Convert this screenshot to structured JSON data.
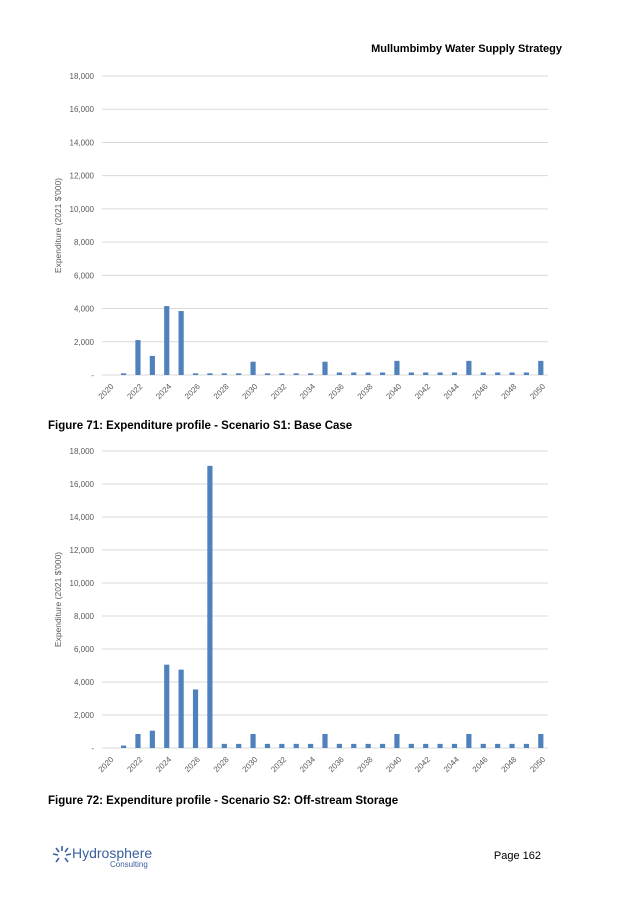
{
  "header": {
    "title": "Mullumbimby Water Supply Strategy"
  },
  "captions": {
    "fig71": "Figure 71: Expenditure profile - Scenario S1: Base Case",
    "fig72": "Figure 72: Expenditure profile - Scenario S2: Off-stream Storage"
  },
  "footer": {
    "logo_text": "Hydrosphere",
    "logo_subtext": "Consulting",
    "page": "Page 162"
  },
  "colors": {
    "bar": "#4f81bd",
    "grid": "#d9d9d9",
    "tick_text": "#595959",
    "logo": "#3a5f9e"
  },
  "chart_data": [
    {
      "type": "bar",
      "ylabel": "Expenditure (2021 $'000)",
      "ylim": [
        0,
        18000
      ],
      "yticks": [
        0,
        2000,
        4000,
        6000,
        8000,
        10000,
        12000,
        14000,
        16000,
        18000
      ],
      "ytick_labels": [
        "-",
        "2,000",
        "4,000",
        "6,000",
        "8,000",
        "10,000",
        "12,000",
        "14,000",
        "16,000",
        "18,000"
      ],
      "grid": true,
      "x": [
        2020,
        2021,
        2022,
        2023,
        2024,
        2025,
        2026,
        2027,
        2028,
        2029,
        2030,
        2031,
        2032,
        2033,
        2034,
        2035,
        2036,
        2037,
        2038,
        2039,
        2040,
        2041,
        2042,
        2043,
        2044,
        2045,
        2046,
        2047,
        2048,
        2049,
        2050
      ],
      "xtick_labels": [
        "2020",
        "2022",
        "2024",
        "2026",
        "2028",
        "2030",
        "2032",
        "2034",
        "2036",
        "2038",
        "2040",
        "2042",
        "2044",
        "2046",
        "2048",
        "2050"
      ],
      "values": [
        0,
        100,
        2100,
        1150,
        4150,
        3850,
        100,
        100,
        100,
        100,
        800,
        100,
        100,
        100,
        100,
        800,
        150,
        150,
        150,
        150,
        850,
        150,
        150,
        150,
        150,
        850,
        150,
        150,
        150,
        150,
        850
      ]
    },
    {
      "type": "bar",
      "ylabel": "Expenditure (2021 $'000)",
      "ylim": [
        0,
        18000
      ],
      "yticks": [
        0,
        2000,
        4000,
        6000,
        8000,
        10000,
        12000,
        14000,
        16000,
        18000
      ],
      "ytick_labels": [
        "-",
        "2,000",
        "4,000",
        "6,000",
        "8,000",
        "10,000",
        "12,000",
        "14,000",
        "16,000",
        "18,000"
      ],
      "grid": true,
      "x": [
        2020,
        2021,
        2022,
        2023,
        2024,
        2025,
        2026,
        2027,
        2028,
        2029,
        2030,
        2031,
        2032,
        2033,
        2034,
        2035,
        2036,
        2037,
        2038,
        2039,
        2040,
        2041,
        2042,
        2043,
        2044,
        2045,
        2046,
        2047,
        2048,
        2049,
        2050
      ],
      "xtick_labels": [
        "2020",
        "2022",
        "2024",
        "2026",
        "2028",
        "2030",
        "2032",
        "2034",
        "2036",
        "2038",
        "2040",
        "2042",
        "2044",
        "2046",
        "2048",
        "2050"
      ],
      "values": [
        0,
        150,
        850,
        1050,
        5050,
        4750,
        3550,
        17100,
        250,
        250,
        850,
        250,
        250,
        250,
        250,
        850,
        250,
        250,
        250,
        250,
        850,
        250,
        250,
        250,
        250,
        850,
        250,
        250,
        250,
        250,
        850
      ]
    }
  ]
}
